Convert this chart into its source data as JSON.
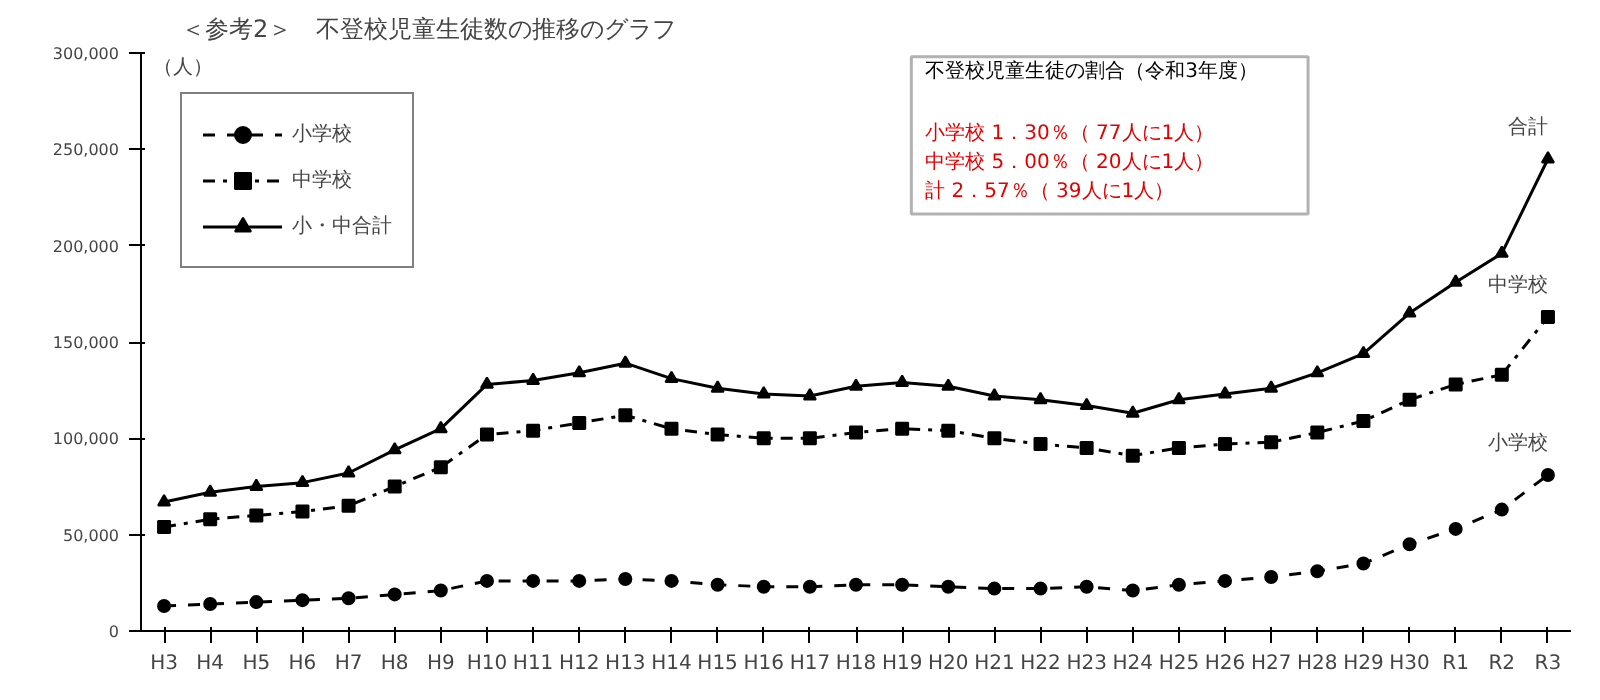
{
  "chart_data": {
    "type": "line",
    "title": "＜参考2＞　不登校児童生徒数の推移のグラフ",
    "ylabel": "（人）",
    "categories": [
      "H3",
      "H4",
      "H5",
      "H6",
      "H7",
      "H8",
      "H9",
      "H10",
      "H11",
      "H12",
      "H13",
      "H14",
      "H15",
      "H16",
      "H17",
      "H18",
      "H19",
      "H20",
      "H21",
      "H22",
      "H23",
      "H24",
      "H25",
      "H26",
      "H27",
      "H28",
      "H29",
      "H30",
      "R1",
      "R2",
      "R3"
    ],
    "series": [
      {
        "name": "小学校",
        "color": "#000000",
        "marker": "circle",
        "line_style": "dotted",
        "values": [
          13000,
          14000,
          15000,
          16000,
          17000,
          19000,
          21000,
          26000,
          26000,
          26000,
          27000,
          26000,
          24000,
          23000,
          23000,
          24000,
          24000,
          23000,
          22000,
          22000,
          23000,
          21000,
          24000,
          26000,
          28000,
          31000,
          35000,
          45000,
          53000,
          63000,
          81000
        ]
      },
      {
        "name": "中学校",
        "color": "#000000",
        "marker": "square",
        "line_style": "dashed",
        "values": [
          54000,
          58000,
          60000,
          62000,
          65000,
          75000,
          85000,
          102000,
          104000,
          108000,
          112000,
          105000,
          102000,
          100000,
          100000,
          103000,
          105000,
          104000,
          100000,
          97000,
          95000,
          91000,
          95000,
          97000,
          98000,
          103000,
          109000,
          120000,
          128000,
          133000,
          163000
        ]
      },
      {
        "name": "小・中合計",
        "color": "#000000",
        "marker": "triangle",
        "line_style": "solid",
        "values": [
          67000,
          72000,
          75000,
          77000,
          82000,
          94000,
          105000,
          128000,
          130000,
          134000,
          139000,
          131000,
          126000,
          123000,
          122000,
          127000,
          129000,
          127000,
          122000,
          120000,
          117000,
          113000,
          120000,
          123000,
          126000,
          134000,
          144000,
          165000,
          181000,
          196000,
          245000
        ]
      }
    ],
    "ylim": [
      0,
      300000
    ],
    "yticks": [
      0,
      {
        "value": 50000,
        "label": "50,000"
      },
      {
        "value": 100000,
        "label": "100,000"
      },
      {
        "value": 150000,
        "label": "150,000"
      },
      {
        "value": 200000,
        "label": "200,000"
      },
      {
        "value": 250000,
        "label": "250,000"
      },
      {
        "value": 300000,
        "label": "300,000"
      }
    ],
    "grid": false,
    "legend": "top left",
    "annotations": [
      "不登校児童生徒の割合（令和3年度）",
      "小学校  1．30％（  77人に1人）",
      "中学校  5．00％（  20人に1人）",
      "  計      2．57％（  39人に1人）",
      {
        "text": "合計",
        "x": "R3",
        "y": 245000
      },
      {
        "text": "中学校",
        "x": "R3",
        "y": 163000
      },
      {
        "text": "小学校",
        "x": "R3",
        "y": 81000
      }
    ]
  }
}
